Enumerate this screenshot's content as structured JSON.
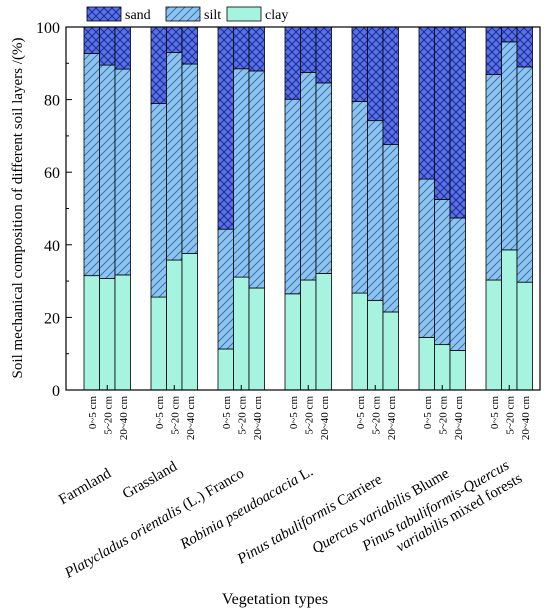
{
  "chart_data": {
    "type": "bar",
    "stacked": true,
    "ylabel": "Soil mechanical composition of different soil layers /(%)",
    "xlabel": "Vegetation types",
    "ylim": [
      0,
      100
    ],
    "yticks": [
      0,
      20,
      40,
      60,
      80,
      100
    ],
    "legend": {
      "position": "top-left",
      "entries": [
        "sand",
        "silt",
        "clay"
      ]
    },
    "series_colors": {
      "sand": "#5a72e0",
      "silt": "#8cc4ee",
      "clay": "#a6f3e0"
    },
    "layers": [
      "0~5 cm",
      "5~20 cm",
      "20~40 cm"
    ],
    "groups": [
      {
        "label": "Farmland",
        "clay": [
          31.5,
          30.7,
          31.7
        ],
        "silt": [
          61.2,
          58.8,
          56.7
        ]
      },
      {
        "label": "Grassland",
        "clay": [
          25.6,
          35.8,
          37.6
        ],
        "silt": [
          53.3,
          57.2,
          52.2
        ]
      },
      {
        "label": "Platycladus orientalis (L.) Franco",
        "clay": [
          11.3,
          31.1,
          28.1
        ],
        "silt": [
          33.0,
          57.4,
          59.8
        ]
      },
      {
        "label": "Robinia pseudoacacia L.",
        "clay": [
          26.5,
          30.3,
          32.1
        ],
        "silt": [
          53.6,
          57.2,
          52.5
        ]
      },
      {
        "label": "Pinus tabuliformis Carriere",
        "clay": [
          26.7,
          24.7,
          21.5
        ],
        "silt": [
          52.8,
          49.5,
          46.1
        ]
      },
      {
        "label": "Quercus variabilis Blume",
        "clay": [
          14.5,
          12.5,
          10.9
        ],
        "silt": [
          43.6,
          40.0,
          36.5
        ]
      },
      {
        "label": "Pinus tabuliformis-Quercus variabilis mixed forests",
        "clay": [
          30.3,
          38.6,
          29.7
        ],
        "silt": [
          56.6,
          57.3,
          59.3
        ]
      }
    ]
  }
}
